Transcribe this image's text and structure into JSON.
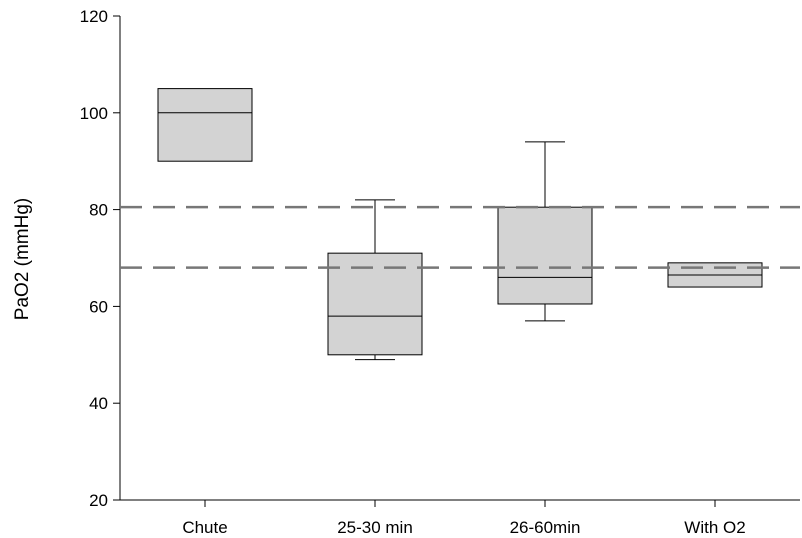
{
  "chart_data": {
    "type": "box",
    "ylabel": "PaO2 (mmHg)",
    "xlabel": "",
    "ylim": [
      20,
      120
    ],
    "yticks": [
      20,
      40,
      60,
      80,
      100,
      120
    ],
    "grid": false,
    "categories": [
      "Chute",
      "25-30 min",
      "26-60min",
      "With O2"
    ],
    "boxes": [
      {
        "category": "Chute",
        "q1": 90,
        "median": 100,
        "q3": 105
      },
      {
        "category": "25-30 min",
        "whisker_low": 49,
        "q1": 50,
        "median": 58,
        "q3": 71,
        "whisker_high": 82
      },
      {
        "category": "26-60min",
        "whisker_low": 57,
        "q1": 60.5,
        "median": 66,
        "q3": 80.5,
        "whisker_high": 94
      },
      {
        "category": "With O2",
        "q1": 64,
        "median": 66.5,
        "q3": 69
      }
    ],
    "reference_lines": [
      {
        "y": 80.5,
        "style": "dashed"
      },
      {
        "y": 68,
        "style": "dashed"
      }
    ],
    "colors": {
      "box_fill": "#d3d3d3",
      "box_stroke": "#000000",
      "reference_line": "#777777"
    }
  }
}
